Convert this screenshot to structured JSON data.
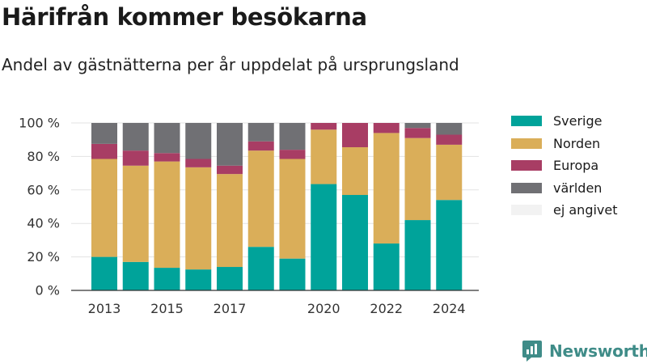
{
  "header": {
    "title": "Härifrån kommer besökarna",
    "subtitle": "Andel av gästnätterna per år uppdelat på ursprungsland"
  },
  "brand": {
    "name": "Newsworthy"
  },
  "colors": {
    "Sverige": "#00a39a",
    "Norden": "#daae59",
    "Europa": "#a83d64",
    "världen": "#707074",
    "ej angivet": "#f2f2f2",
    "grid": "#e3e3e3",
    "axis": "#333333"
  },
  "chart_data": {
    "type": "bar",
    "stacked": true,
    "categories": [
      "2013",
      "2014",
      "2015",
      "2016",
      "2017",
      "2018",
      "2019",
      "2020",
      "2021",
      "2022",
      "2023",
      "2024"
    ],
    "x_tick_labels": [
      "2013",
      "2015",
      "2017",
      "2020",
      "2022",
      "2024"
    ],
    "y_tick_labels": [
      "0 %",
      "20 %",
      "40 %",
      "60 %",
      "80 %",
      "100 %"
    ],
    "y_ticks": [
      0,
      20,
      40,
      60,
      80,
      100
    ],
    "ylim": [
      0,
      100
    ],
    "grid": true,
    "legend_position": "right",
    "series": [
      {
        "name": "Sverige",
        "values": [
          20,
          17,
          13.5,
          12.5,
          14,
          26,
          19,
          63.5,
          57,
          28,
          42,
          54
        ]
      },
      {
        "name": "Norden",
        "values": [
          58.5,
          57.5,
          63.5,
          61,
          55.5,
          57.5,
          59.5,
          32.5,
          28.5,
          66,
          49,
          33
        ]
      },
      {
        "name": "Europa",
        "values": [
          9,
          9,
          5,
          5,
          5,
          5.5,
          5.5,
          4,
          14.5,
          6,
          6,
          6
        ]
      },
      {
        "name": "världen",
        "values": [
          12.5,
          16.5,
          18,
          21.5,
          25.5,
          11,
          16,
          0,
          0,
          0,
          3,
          7
        ]
      },
      {
        "name": "ej angivet",
        "values": [
          0,
          0,
          0,
          0,
          0,
          0,
          0,
          0,
          0,
          0,
          0,
          0
        ]
      }
    ]
  }
}
